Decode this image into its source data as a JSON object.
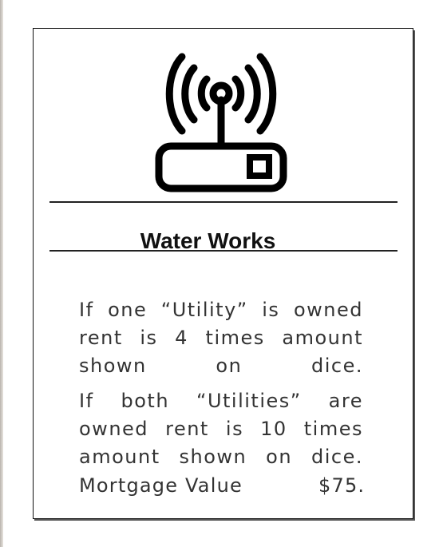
{
  "card": {
    "title": "Water Works",
    "icon": "wifi-router-icon",
    "rules": [
      "If one “Utility” is owned rent is 4 times amount shown on dice.",
      "If both “Utilities” are owned rent is 10 times amount shown on dice."
    ],
    "mortgage": {
      "label": "Mortgage Value",
      "value": "$75."
    }
  }
}
